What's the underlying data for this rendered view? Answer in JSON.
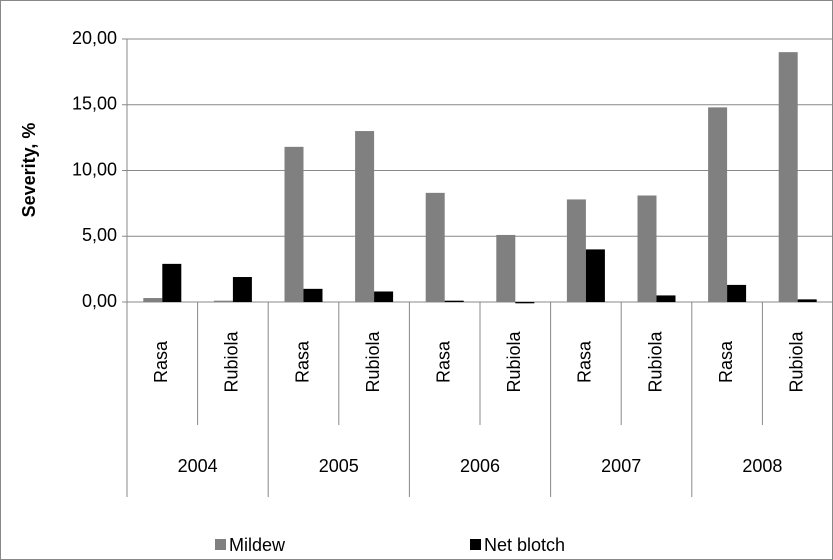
{
  "chart_data": {
    "type": "bar",
    "y_label": "Severity, %",
    "categories": [
      "Rasa",
      "Rubiola",
      "Rasa",
      "Rubiola",
      "Rasa",
      "Rubiola",
      "Rasa",
      "Rubiola",
      "Rasa",
      "Rubiola"
    ],
    "category_groups": [
      "2004",
      "2005",
      "2006",
      "2007",
      "2008"
    ],
    "series": [
      {
        "name": "Mildew",
        "color": "#808080",
        "values": [
          0.3,
          0.1,
          11.8,
          13.0,
          8.3,
          5.1,
          7.8,
          8.1,
          14.8,
          19.0
        ]
      },
      {
        "name": "Net blotch",
        "color": "#000000",
        "values": [
          2.9,
          1.9,
          1.0,
          0.8,
          0.1,
          -0.1,
          4.0,
          0.5,
          1.3,
          0.2
        ]
      }
    ],
    "ylim": [
      0,
      20
    ],
    "yticks": [
      {
        "value": 0,
        "label": "0,00"
      },
      {
        "value": 5,
        "label": "5,00"
      },
      {
        "value": 10,
        "label": "10,00"
      },
      {
        "value": 15,
        "label": "15,00"
      },
      {
        "value": 20,
        "label": "20,00"
      }
    ],
    "grid": true,
    "legend": "bottom"
  }
}
